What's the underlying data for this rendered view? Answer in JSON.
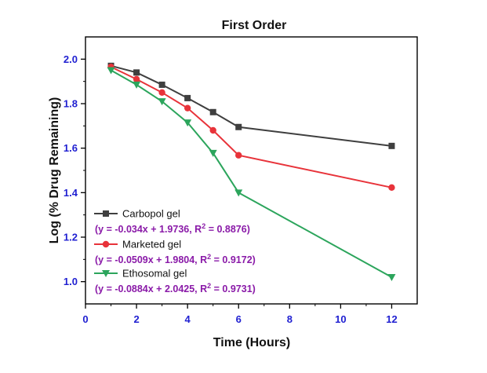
{
  "chart_data": {
    "type": "line",
    "title": "First Order",
    "xlabel": "Time (Hours)",
    "ylabel": "Log (% Drug Remaining)",
    "xlim": [
      0,
      13
    ],
    "ylim": [
      0.9,
      2.1
    ],
    "x_ticks": [
      "0",
      "2",
      "4",
      "6",
      "8",
      "10",
      "12"
    ],
    "y_ticks": [
      "1.0",
      "1.2",
      "1.4",
      "1.6",
      "1.8",
      "2.0"
    ],
    "x": [
      1,
      2,
      3,
      4,
      5,
      6,
      12
    ],
    "series": [
      {
        "name": "Carbopol gel",
        "equation": "(y = -0.034x + 1.9736, R",
        "r2": " = 0.8876)",
        "color": "#3f3f3f",
        "marker": "square",
        "values": [
          1.97,
          1.94,
          1.885,
          1.825,
          1.762,
          1.695,
          1.61
        ]
      },
      {
        "name": "Marketed gel",
        "equation": "(y = -0.0509x + 1.9804, R",
        "r2": " = 0.9172)",
        "color": "#e8333a",
        "marker": "circle",
        "values": [
          1.965,
          1.91,
          1.85,
          1.78,
          1.68,
          1.568,
          1.423
        ]
      },
      {
        "name": "Ethosomal gel",
        "equation": "(y = -0.0884x + 2.0425, R",
        "r2": " = 0.9731)",
        "color": "#2ca55c",
        "marker": "triangle-down",
        "values": [
          1.95,
          1.885,
          1.81,
          1.715,
          1.578,
          1.4,
          1.02
        ]
      }
    ],
    "r2_superscript": "2",
    "legend_position": "bottom-left",
    "grid": false
  }
}
